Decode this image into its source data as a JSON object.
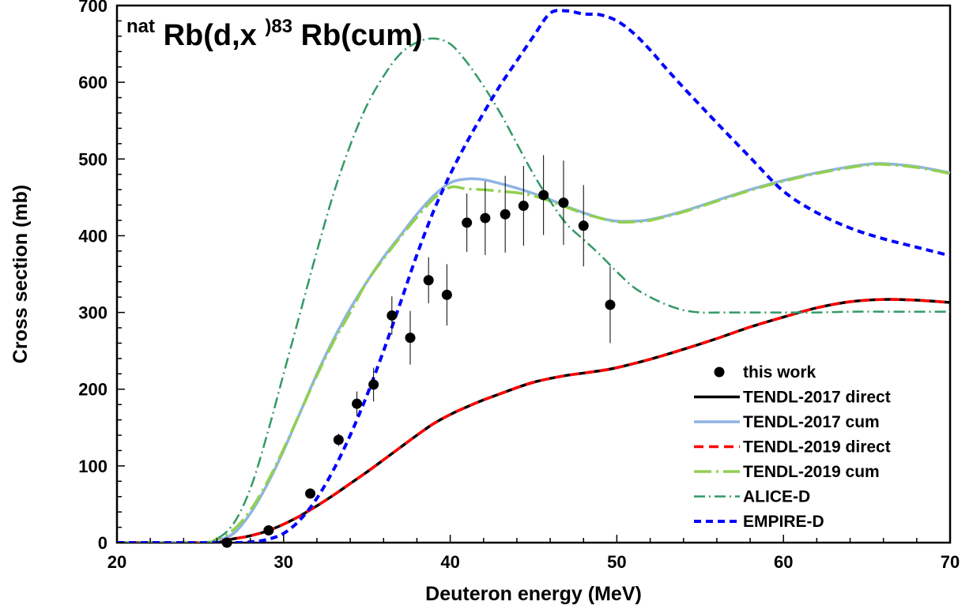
{
  "chart_data": {
    "type": "line",
    "title": {
      "pre_sup": "nat",
      "main1": "Rb(d,x",
      "mid_sup": ")83",
      "main2": "Rb(cum)"
    },
    "xlabel": "Deuteron energy (MeV)",
    "ylabel": "Cross section (mb)",
    "xlim": [
      20,
      70
    ],
    "ylim": [
      0,
      700
    ],
    "xticks": [
      20,
      30,
      40,
      50,
      60,
      70
    ],
    "yticks": [
      0,
      100,
      200,
      300,
      400,
      500,
      600,
      700
    ],
    "grid": false,
    "legend_position": "bottom-right",
    "experimental": {
      "name": "this work",
      "color": "#000000",
      "points": [
        {
          "x": 26.6,
          "y": 0,
          "err": 0
        },
        {
          "x": 29.1,
          "y": 16,
          "err": 4
        },
        {
          "x": 31.6,
          "y": 64,
          "err": 6
        },
        {
          "x": 33.3,
          "y": 134,
          "err": 8
        },
        {
          "x": 34.4,
          "y": 181,
          "err": 16
        },
        {
          "x": 35.4,
          "y": 206,
          "err": 22
        },
        {
          "x": 36.5,
          "y": 296,
          "err": 25
        },
        {
          "x": 37.6,
          "y": 267,
          "err": 35
        },
        {
          "x": 38.7,
          "y": 342,
          "err": 30
        },
        {
          "x": 39.8,
          "y": 323,
          "err": 40
        },
        {
          "x": 41.0,
          "y": 417,
          "err": 38
        },
        {
          "x": 42.1,
          "y": 423,
          "err": 48
        },
        {
          "x": 43.3,
          "y": 428,
          "err": 50
        },
        {
          "x": 44.4,
          "y": 439,
          "err": 52
        },
        {
          "x": 45.6,
          "y": 453,
          "err": 52
        },
        {
          "x": 46.8,
          "y": 443,
          "err": 55
        },
        {
          "x": 48.0,
          "y": 413,
          "err": 53
        },
        {
          "x": 49.6,
          "y": 310,
          "err": 50
        }
      ]
    },
    "series": [
      {
        "name": "TENDL-2017 direct",
        "color": "#000000",
        "style": "solid",
        "x": [
          20,
          25,
          26,
          27,
          28,
          29,
          30,
          31,
          32,
          33,
          34,
          35,
          36,
          37,
          38,
          39,
          40,
          41,
          42,
          43,
          44,
          45,
          46,
          47,
          48,
          49,
          50,
          52,
          54,
          56,
          58,
          60,
          62,
          64,
          66,
          68,
          70
        ],
        "y": [
          0,
          0,
          2,
          5,
          9,
          15,
          24,
          35,
          48,
          62,
          77,
          92,
          108,
          124,
          140,
          155,
          167,
          177,
          186,
          194,
          202,
          209,
          214,
          218,
          221,
          224,
          228,
          239,
          252,
          266,
          281,
          294,
          306,
          314,
          317,
          316,
          313
        ]
      },
      {
        "name": "TENDL-2017 cum",
        "color": "#8eb4e3",
        "style": "solid",
        "x": [
          20,
          25,
          26,
          27,
          28,
          29,
          30,
          31,
          32,
          33,
          34,
          35,
          36,
          37,
          38,
          39,
          40,
          41,
          42,
          43,
          44,
          45,
          46,
          47,
          48,
          49,
          50,
          51,
          52,
          54,
          56,
          58,
          60,
          62,
          64,
          65,
          66,
          68,
          70
        ],
        "y": [
          0,
          0,
          3,
          12,
          38,
          75,
          120,
          170,
          220,
          265,
          305,
          340,
          372,
          400,
          428,
          452,
          469,
          474,
          473,
          468,
          462,
          455,
          447,
          438,
          430,
          423,
          419,
          419,
          421,
          432,
          446,
          460,
          472,
          482,
          490,
          493,
          494,
          490,
          482
        ]
      },
      {
        "name": "TENDL-2019 direct",
        "color": "#ff0000",
        "style": "dashed",
        "x": [
          20,
          25,
          26,
          27,
          28,
          29,
          30,
          31,
          32,
          33,
          34,
          35,
          36,
          37,
          38,
          39,
          40,
          41,
          42,
          43,
          44,
          45,
          46,
          47,
          48,
          49,
          50,
          52,
          54,
          56,
          58,
          60,
          62,
          64,
          66,
          68,
          70
        ],
        "y": [
          0,
          0,
          2,
          5,
          9,
          15,
          24,
          35,
          48,
          62,
          77,
          92,
          108,
          124,
          140,
          155,
          167,
          177,
          186,
          194,
          202,
          209,
          214,
          218,
          221,
          224,
          228,
          239,
          252,
          266,
          281,
          294,
          306,
          314,
          317,
          316,
          313
        ]
      },
      {
        "name": "TENDL-2019 cum",
        "color": "#92d050",
        "style": "long-dash-dot",
        "x": [
          20,
          25,
          26,
          27,
          28,
          29,
          30,
          31,
          32,
          33,
          34,
          35,
          36,
          37,
          38,
          39,
          40,
          41,
          42,
          43,
          44,
          45,
          46,
          47,
          48,
          49,
          50,
          51,
          52,
          54,
          56,
          58,
          60,
          62,
          64,
          65,
          66,
          68,
          70
        ],
        "y": [
          0,
          0,
          5,
          17,
          42,
          78,
          122,
          170,
          218,
          262,
          300,
          340,
          370,
          398,
          424,
          448,
          463,
          461,
          460,
          458,
          456,
          452,
          445,
          437,
          429,
          423,
          418,
          418,
          420,
          431,
          445,
          459,
          471,
          481,
          489,
          492,
          493,
          489,
          481
        ]
      },
      {
        "name": "ALICE-D",
        "color": "#339966",
        "style": "dash-dot",
        "x": [
          20,
          25,
          26,
          27,
          28,
          29,
          30,
          31,
          32,
          33,
          34,
          35,
          36,
          37,
          38,
          39,
          40,
          41,
          42,
          43,
          44,
          45,
          46,
          47,
          48,
          49,
          50,
          51,
          52,
          53,
          54,
          55,
          56,
          57,
          58,
          60,
          62,
          64,
          66,
          68,
          70
        ],
        "y": [
          0,
          0,
          5,
          25,
          70,
          140,
          220,
          300,
          380,
          455,
          518,
          570,
          608,
          637,
          652,
          657,
          650,
          626,
          595,
          560,
          520,
          480,
          445,
          415,
          395,
          375,
          353,
          333,
          320,
          310,
          303,
          300,
          300,
          300,
          300,
          300,
          300,
          301,
          301,
          301,
          301
        ]
      },
      {
        "name": "EMPIRE-D",
        "color": "#0000ff",
        "style": "short-dash",
        "x": [
          20,
          27,
          28,
          29,
          30,
          31,
          32,
          33,
          34,
          35,
          36,
          37,
          38,
          39,
          40,
          41,
          42,
          43,
          44,
          45,
          46,
          47,
          48,
          49,
          50,
          51,
          52,
          53,
          54,
          55,
          56,
          58,
          60,
          62,
          64,
          66,
          68,
          70
        ],
        "y": [
          0,
          0,
          1,
          4,
          12,
          30,
          58,
          95,
          140,
          192,
          250,
          312,
          375,
          432,
          480,
          522,
          560,
          596,
          628,
          660,
          690,
          693,
          689,
          688,
          680,
          664,
          642,
          617,
          593,
          570,
          547,
          502,
          458,
          430,
          410,
          396,
          385,
          374
        ]
      }
    ]
  }
}
